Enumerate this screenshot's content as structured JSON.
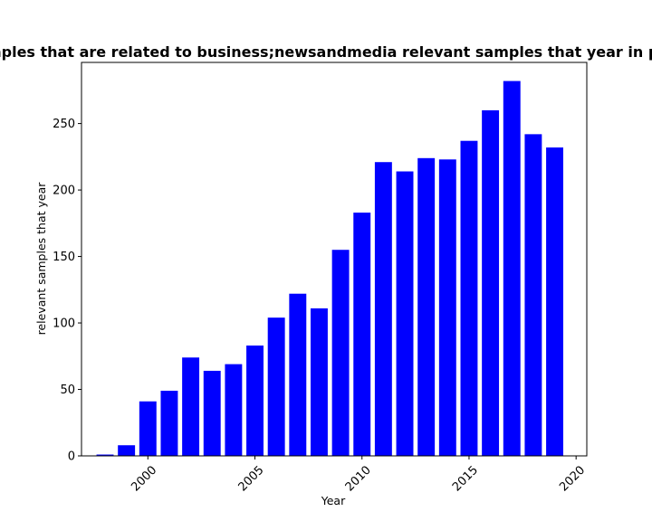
{
  "chart_data": {
    "type": "bar",
    "title": "Number of samples that are related to business;newsandmedia relevant samples that year in privacy policies",
    "xlabel": "Year",
    "ylabel": "relevant samples that year",
    "x": [
      1998,
      1999,
      2000,
      2001,
      2002,
      2003,
      2004,
      2005,
      2006,
      2007,
      2008,
      2009,
      2010,
      2011,
      2012,
      2013,
      2014,
      2015,
      2016,
      2017,
      2018,
      2019
    ],
    "values": [
      1,
      8,
      41,
      49,
      74,
      64,
      69,
      83,
      104,
      122,
      111,
      155,
      183,
      221,
      214,
      224,
      223,
      237,
      260,
      282,
      242,
      232
    ],
    "xlim": [
      1996.9,
      2020.5
    ],
    "ylim": [
      0,
      296
    ],
    "xticks": [
      2000,
      2005,
      2010,
      2015,
      2020
    ],
    "yticks": [
      0,
      50,
      100,
      150,
      200,
      250
    ],
    "bar_color": "#0000ff",
    "grid": false,
    "legend": false
  }
}
